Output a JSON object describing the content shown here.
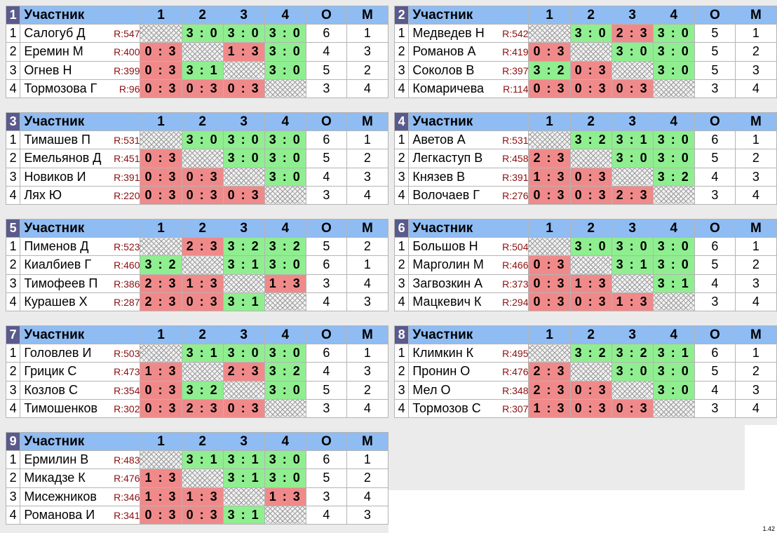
{
  "header": {
    "participant_label": "Участник",
    "cols": [
      "1",
      "2",
      "3",
      "4",
      "О",
      "М"
    ]
  },
  "version": "1.42",
  "colors": {
    "header": "#8fbcf3",
    "group_badge": "#5a5a8c",
    "win": "#8fee8f",
    "loss": "#f08a8a"
  },
  "groups": [
    {
      "num": "1",
      "rows": [
        {
          "n": "1",
          "name": "Салогуб Д",
          "rating": "R:547",
          "cells": [
            {
              "t": "x"
            },
            {
              "t": "w",
              "s": "3 : 0"
            },
            {
              "t": "w",
              "s": "3 : 0"
            },
            {
              "t": "w",
              "s": "3 : 0"
            }
          ],
          "o": "6",
          "m": "1"
        },
        {
          "n": "2",
          "name": "Еремин М",
          "rating": "R:400",
          "cells": [
            {
              "t": "l",
              "s": "0 : 3"
            },
            {
              "t": "x"
            },
            {
              "t": "l",
              "s": "1 : 3"
            },
            {
              "t": "w",
              "s": "3 : 0"
            }
          ],
          "o": "4",
          "m": "3"
        },
        {
          "n": "3",
          "name": "Огнев Н",
          "rating": "R:399",
          "cells": [
            {
              "t": "l",
              "s": "0 : 3"
            },
            {
              "t": "w",
              "s": "3 : 1"
            },
            {
              "t": "x"
            },
            {
              "t": "w",
              "s": "3 : 0"
            }
          ],
          "o": "5",
          "m": "2"
        },
        {
          "n": "4",
          "name": "Тормозова Г",
          "rating": "R:96",
          "cells": [
            {
              "t": "l",
              "s": "0 : 3"
            },
            {
              "t": "l",
              "s": "0 : 3"
            },
            {
              "t": "l",
              "s": "0 : 3"
            },
            {
              "t": "x"
            }
          ],
          "o": "3",
          "m": "4"
        }
      ]
    },
    {
      "num": "2",
      "rows": [
        {
          "n": "1",
          "name": "Медведев Н",
          "rating": "R:542",
          "cells": [
            {
              "t": "x"
            },
            {
              "t": "w",
              "s": "3 : 0"
            },
            {
              "t": "l",
              "s": "2 : 3"
            },
            {
              "t": "w",
              "s": "3 : 0"
            }
          ],
          "o": "5",
          "m": "1"
        },
        {
          "n": "2",
          "name": "Романов А",
          "rating": "R:419",
          "cells": [
            {
              "t": "l",
              "s": "0 : 3"
            },
            {
              "t": "x"
            },
            {
              "t": "w",
              "s": "3 : 0"
            },
            {
              "t": "w",
              "s": "3 : 0"
            }
          ],
          "o": "5",
          "m": "2"
        },
        {
          "n": "3",
          "name": "Соколов В",
          "rating": "R:397",
          "cells": [
            {
              "t": "w",
              "s": "3 : 2"
            },
            {
              "t": "l",
              "s": "0 : 3"
            },
            {
              "t": "x"
            },
            {
              "t": "w",
              "s": "3 : 0"
            }
          ],
          "o": "5",
          "m": "3"
        },
        {
          "n": "4",
          "name": "Комаричева",
          "rating": "R:114",
          "cells": [
            {
              "t": "l",
              "s": "0 : 3"
            },
            {
              "t": "l",
              "s": "0 : 3"
            },
            {
              "t": "l",
              "s": "0 : 3"
            },
            {
              "t": "x"
            }
          ],
          "o": "3",
          "m": "4"
        }
      ]
    },
    {
      "num": "3",
      "rows": [
        {
          "n": "1",
          "name": "Тимашев П",
          "rating": "R:531",
          "cells": [
            {
              "t": "x"
            },
            {
              "t": "w",
              "s": "3 : 0"
            },
            {
              "t": "w",
              "s": "3 : 0"
            },
            {
              "t": "w",
              "s": "3 : 0"
            }
          ],
          "o": "6",
          "m": "1"
        },
        {
          "n": "2",
          "name": "Емельянов Д",
          "rating": "R:451",
          "cells": [
            {
              "t": "l",
              "s": "0 : 3"
            },
            {
              "t": "x"
            },
            {
              "t": "w",
              "s": "3 : 0"
            },
            {
              "t": "w",
              "s": "3 : 0"
            }
          ],
          "o": "5",
          "m": "2"
        },
        {
          "n": "3",
          "name": "Новиков И",
          "rating": "R:391",
          "cells": [
            {
              "t": "l",
              "s": "0 : 3"
            },
            {
              "t": "l",
              "s": "0 : 3"
            },
            {
              "t": "x"
            },
            {
              "t": "w",
              "s": "3 : 0"
            }
          ],
          "o": "4",
          "m": "3"
        },
        {
          "n": "4",
          "name": "Лях Ю",
          "rating": "R:220",
          "cells": [
            {
              "t": "l",
              "s": "0 : 3"
            },
            {
              "t": "l",
              "s": "0 : 3"
            },
            {
              "t": "l",
              "s": "0 : 3"
            },
            {
              "t": "x"
            }
          ],
          "o": "3",
          "m": "4"
        }
      ]
    },
    {
      "num": "4",
      "rows": [
        {
          "n": "1",
          "name": "Аветов А",
          "rating": "R:531",
          "cells": [
            {
              "t": "x"
            },
            {
              "t": "w",
              "s": "3 : 2"
            },
            {
              "t": "w",
              "s": "3 : 1"
            },
            {
              "t": "w",
              "s": "3 : 0"
            }
          ],
          "o": "6",
          "m": "1"
        },
        {
          "n": "2",
          "name": "Легкаступ В",
          "rating": "R:458",
          "cells": [
            {
              "t": "l",
              "s": "2 : 3"
            },
            {
              "t": "x"
            },
            {
              "t": "w",
              "s": "3 : 0"
            },
            {
              "t": "w",
              "s": "3 : 0"
            }
          ],
          "o": "5",
          "m": "2"
        },
        {
          "n": "3",
          "name": "Князев В",
          "rating": "R:391",
          "cells": [
            {
              "t": "l",
              "s": "1 : 3"
            },
            {
              "t": "l",
              "s": "0 : 3"
            },
            {
              "t": "x"
            },
            {
              "t": "w",
              "s": "3 : 2"
            }
          ],
          "o": "4",
          "m": "3"
        },
        {
          "n": "4",
          "name": "Волочаев Г",
          "rating": "R:276",
          "cells": [
            {
              "t": "l",
              "s": "0 : 3"
            },
            {
              "t": "l",
              "s": "0 : 3"
            },
            {
              "t": "l",
              "s": "2 : 3"
            },
            {
              "t": "x"
            }
          ],
          "o": "3",
          "m": "4"
        }
      ]
    },
    {
      "num": "5",
      "rows": [
        {
          "n": "1",
          "name": "Пименов Д",
          "rating": "R:523",
          "cells": [
            {
              "t": "x"
            },
            {
              "t": "l",
              "s": "2 : 3"
            },
            {
              "t": "w",
              "s": "3 : 2"
            },
            {
              "t": "w",
              "s": "3 : 2"
            }
          ],
          "o": "5",
          "m": "2"
        },
        {
          "n": "2",
          "name": "Киалбиев Г",
          "rating": "R:460",
          "cells": [
            {
              "t": "w",
              "s": "3 : 2"
            },
            {
              "t": "x"
            },
            {
              "t": "w",
              "s": "3 : 1"
            },
            {
              "t": "w",
              "s": "3 : 0"
            }
          ],
          "o": "6",
          "m": "1"
        },
        {
          "n": "3",
          "name": "Тимофеев П",
          "rating": "R:386",
          "cells": [
            {
              "t": "l",
              "s": "2 : 3"
            },
            {
              "t": "l",
              "s": "1 : 3"
            },
            {
              "t": "x"
            },
            {
              "t": "l",
              "s": "1 : 3"
            }
          ],
          "o": "3",
          "m": "4"
        },
        {
          "n": "4",
          "name": "Курашев Х",
          "rating": "R:287",
          "cells": [
            {
              "t": "l",
              "s": "2 : 3"
            },
            {
              "t": "l",
              "s": "0 : 3"
            },
            {
              "t": "w",
              "s": "3 : 1"
            },
            {
              "t": "x"
            }
          ],
          "o": "4",
          "m": "3"
        }
      ]
    },
    {
      "num": "6",
      "rows": [
        {
          "n": "1",
          "name": "Большов Н",
          "rating": "R:504",
          "cells": [
            {
              "t": "x"
            },
            {
              "t": "w",
              "s": "3 : 0"
            },
            {
              "t": "w",
              "s": "3 : 0"
            },
            {
              "t": "w",
              "s": "3 : 0"
            }
          ],
          "o": "6",
          "m": "1"
        },
        {
          "n": "2",
          "name": "Марголин М",
          "rating": "R:466",
          "cells": [
            {
              "t": "l",
              "s": "0 : 3"
            },
            {
              "t": "x"
            },
            {
              "t": "w",
              "s": "3 : 1"
            },
            {
              "t": "w",
              "s": "3 : 0"
            }
          ],
          "o": "5",
          "m": "2"
        },
        {
          "n": "3",
          "name": "Загвозкин А",
          "rating": "R:373",
          "cells": [
            {
              "t": "l",
              "s": "0 : 3"
            },
            {
              "t": "l",
              "s": "1 : 3"
            },
            {
              "t": "x"
            },
            {
              "t": "w",
              "s": "3 : 1"
            }
          ],
          "o": "4",
          "m": "3"
        },
        {
          "n": "4",
          "name": "Мацкевич К",
          "rating": "R:294",
          "cells": [
            {
              "t": "l",
              "s": "0 : 3"
            },
            {
              "t": "l",
              "s": "0 : 3"
            },
            {
              "t": "l",
              "s": "1 : 3"
            },
            {
              "t": "x"
            }
          ],
          "o": "3",
          "m": "4"
        }
      ]
    },
    {
      "num": "7",
      "rows": [
        {
          "n": "1",
          "name": "Головлев И",
          "rating": "R:503",
          "cells": [
            {
              "t": "x"
            },
            {
              "t": "w",
              "s": "3 : 1"
            },
            {
              "t": "w",
              "s": "3 : 0"
            },
            {
              "t": "w",
              "s": "3 : 0"
            }
          ],
          "o": "6",
          "m": "1"
        },
        {
          "n": "2",
          "name": "Грицик С",
          "rating": "R:473",
          "cells": [
            {
              "t": "l",
              "s": "1 : 3"
            },
            {
              "t": "x"
            },
            {
              "t": "l",
              "s": "2 : 3"
            },
            {
              "t": "w",
              "s": "3 : 2"
            }
          ],
          "o": "4",
          "m": "3"
        },
        {
          "n": "3",
          "name": "Козлов С",
          "rating": "R:354",
          "cells": [
            {
              "t": "l",
              "s": "0 : 3"
            },
            {
              "t": "w",
              "s": "3 : 2"
            },
            {
              "t": "x"
            },
            {
              "t": "w",
              "s": "3 : 0"
            }
          ],
          "o": "5",
          "m": "2"
        },
        {
          "n": "4",
          "name": "Тимошенков",
          "rating": "R:302",
          "cells": [
            {
              "t": "l",
              "s": "0 : 3"
            },
            {
              "t": "l",
              "s": "2 : 3"
            },
            {
              "t": "l",
              "s": "0 : 3"
            },
            {
              "t": "x"
            }
          ],
          "o": "3",
          "m": "4"
        }
      ]
    },
    {
      "num": "8",
      "rows": [
        {
          "n": "1",
          "name": "Климкин К",
          "rating": "R:495",
          "cells": [
            {
              "t": "x"
            },
            {
              "t": "w",
              "s": "3 : 2"
            },
            {
              "t": "w",
              "s": "3 : 2"
            },
            {
              "t": "w",
              "s": "3 : 1"
            }
          ],
          "o": "6",
          "m": "1"
        },
        {
          "n": "2",
          "name": "Пронин О",
          "rating": "R:476",
          "cells": [
            {
              "t": "l",
              "s": "2 : 3"
            },
            {
              "t": "x"
            },
            {
              "t": "w",
              "s": "3 : 0"
            },
            {
              "t": "w",
              "s": "3 : 0"
            }
          ],
          "o": "5",
          "m": "2"
        },
        {
          "n": "3",
          "name": "Мел О",
          "rating": "R:348",
          "cells": [
            {
              "t": "l",
              "s": "2 : 3"
            },
            {
              "t": "l",
              "s": "0 : 3"
            },
            {
              "t": "x"
            },
            {
              "t": "w",
              "s": "3 : 0"
            }
          ],
          "o": "4",
          "m": "3"
        },
        {
          "n": "4",
          "name": "Тормозов С",
          "rating": "R:307",
          "cells": [
            {
              "t": "l",
              "s": "1 : 3"
            },
            {
              "t": "l",
              "s": "0 : 3"
            },
            {
              "t": "l",
              "s": "0 : 3"
            },
            {
              "t": "x"
            }
          ],
          "o": "3",
          "m": "4"
        }
      ]
    },
    {
      "num": "9",
      "rows": [
        {
          "n": "1",
          "name": "Ермилин В",
          "rating": "R:483",
          "cells": [
            {
              "t": "x"
            },
            {
              "t": "w",
              "s": "3 : 1"
            },
            {
              "t": "w",
              "s": "3 : 1"
            },
            {
              "t": "w",
              "s": "3 : 0"
            }
          ],
          "o": "6",
          "m": "1"
        },
        {
          "n": "2",
          "name": "Микадзе К",
          "rating": "R:476",
          "cells": [
            {
              "t": "l",
              "s": "1 : 3"
            },
            {
              "t": "x"
            },
            {
              "t": "w",
              "s": "3 : 1"
            },
            {
              "t": "w",
              "s": "3 : 0"
            }
          ],
          "o": "5",
          "m": "2"
        },
        {
          "n": "3",
          "name": "Мисежников",
          "rating": "R:346",
          "cells": [
            {
              "t": "l",
              "s": "1 : 3"
            },
            {
              "t": "l",
              "s": "1 : 3"
            },
            {
              "t": "x"
            },
            {
              "t": "l",
              "s": "1 : 3"
            }
          ],
          "o": "3",
          "m": "4"
        },
        {
          "n": "4",
          "name": "Романова И",
          "rating": "R:341",
          "cells": [
            {
              "t": "l",
              "s": "0 : 3"
            },
            {
              "t": "l",
              "s": "0 : 3"
            },
            {
              "t": "w",
              "s": "3 : 1"
            },
            {
              "t": "x"
            }
          ],
          "o": "4",
          "m": "3"
        }
      ]
    }
  ]
}
